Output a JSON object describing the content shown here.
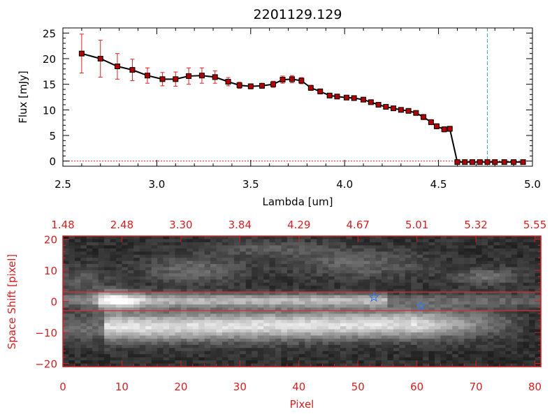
{
  "chart_data": [
    {
      "type": "line",
      "title": "2201129.129",
      "xlabel": "Lambda [um]",
      "ylabel": "Flux [mJy]",
      "xlim": [
        2.5,
        5.0
      ],
      "ylim": [
        -1,
        26
      ],
      "x_ticks": [
        2.5,
        3.0,
        3.5,
        4.0,
        4.5,
        5.0
      ],
      "x_tick_labels": [
        "2.5",
        "3.0",
        "3.5",
        "4.0",
        "4.5",
        "5.0"
      ],
      "y_ticks": [
        0,
        5,
        10,
        15,
        20,
        25
      ],
      "y_tick_labels": [
        "0",
        "5",
        "10",
        "15",
        "20",
        "25"
      ],
      "line_color": "#000000",
      "marker_color": "#b00000",
      "error_color": "#e02020",
      "cutoff_line": {
        "x": 4.76,
        "color": "#3ca0c8",
        "style": "dashed"
      },
      "series": [
        {
          "x": [
            2.6,
            2.7,
            2.79,
            2.87,
            2.95,
            3.03,
            3.1,
            3.17,
            3.24,
            3.31,
            3.38,
            3.44,
            3.5,
            3.56,
            3.62,
            3.67,
            3.72,
            3.77,
            3.82,
            3.87,
            3.92,
            3.96,
            4.01,
            4.05,
            4.1,
            4.14,
            4.18,
            4.22,
            4.26,
            4.3,
            4.34,
            4.38,
            4.42,
            4.46,
            4.49,
            4.53,
            4.56,
            4.6,
            4.64,
            4.68,
            4.72,
            4.76,
            4.8,
            4.85,
            4.9,
            4.95
          ],
          "y": [
            21.0,
            20.0,
            18.5,
            17.8,
            16.7,
            16.0,
            16.0,
            16.6,
            16.7,
            16.4,
            15.5,
            14.8,
            14.6,
            14.7,
            15.0,
            15.9,
            16.0,
            15.7,
            14.3,
            13.6,
            12.8,
            12.6,
            12.4,
            12.3,
            12.0,
            11.5,
            11.0,
            10.6,
            10.3,
            10.0,
            9.8,
            9.4,
            8.6,
            7.6,
            6.8,
            6.2,
            6.3,
            -0.2,
            -0.2,
            -0.2,
            -0.2,
            -0.2,
            -0.2,
            -0.2,
            -0.2,
            -0.2
          ],
          "errors": [
            3.8,
            3.6,
            2.5,
            2.1,
            1.5,
            1.3,
            1.4,
            1.6,
            1.5,
            1.2,
            0.8,
            0.6,
            0.5,
            0.5,
            0.6,
            0.7,
            0.7,
            0.6,
            0.5,
            0.5,
            0.4,
            0.4,
            0.4,
            0.4,
            0.4,
            0.4,
            0.4,
            0.4,
            0.4,
            0.4,
            0.4,
            0.4,
            0.5,
            0.5,
            0.5,
            0.5,
            0.5,
            0.0,
            0.0,
            0.0,
            0.0,
            0.0,
            0.0,
            0.0,
            0.0,
            0.0
          ]
        }
      ]
    },
    {
      "type": "heatmap",
      "xlabel": "Pixel",
      "ylabel": "Space Shift [pixel]",
      "xlim": [
        0,
        81
      ],
      "ylim": [
        -21,
        21
      ],
      "x_ticks": [
        0,
        10,
        20,
        30,
        40,
        50,
        60,
        70,
        80
      ],
      "x_tick_labels": [
        "0",
        "10",
        "20",
        "30",
        "40",
        "50",
        "60",
        "70",
        "80"
      ],
      "top_axis_tick_labels": [
        "1.48",
        "2.48",
        "3.30",
        "3.84",
        "4.29",
        "4.67",
        "5.01",
        "5.32",
        "5.55"
      ],
      "y_ticks": [
        -20,
        -10,
        0,
        10,
        20
      ],
      "y_tick_labels": [
        "−20",
        "−10",
        "0",
        "10",
        "20"
      ],
      "axis_color": "#d42020",
      "extraction_lines": [
        3,
        -3
      ],
      "extraction_line_color": "#d03030",
      "markers": [
        {
          "x": 52.7,
          "y": 1.3,
          "symbol": "star-icon"
        },
        {
          "x": 60.7,
          "y": -1.5,
          "symbol": "star-icon"
        }
      ],
      "marker_color": "#3a78d8",
      "colormap": "grayscale"
    }
  ]
}
